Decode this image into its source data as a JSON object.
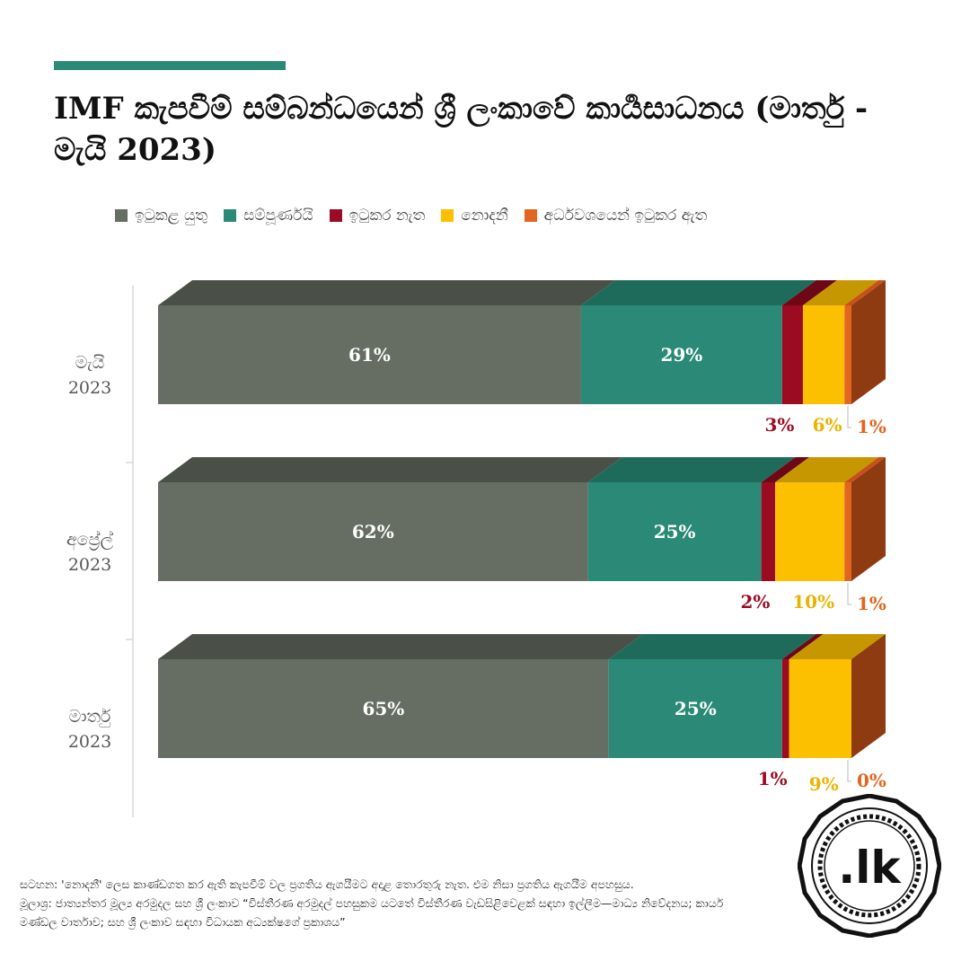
{
  "title": "IMF කැපවීම් සම්බන්ධයෙන් ශ්‍රී ලංකාවේ කාර්‍යසාධනය (මාර්තු - මැයි  2023)",
  "colors": {
    "accent": "#2a8a77",
    "should_complete": "#666d62",
    "complete": "#2a8a77",
    "not_complete": "#9b0c22",
    "unknown": "#fcc000",
    "partial": "#e2661f"
  },
  "legend": [
    {
      "label": "ඉටුකළ යුතු",
      "color": "#666d62"
    },
    {
      "label": "සම්පූර්ණයි",
      "color": "#2a8a77"
    },
    {
      "label": "ඉටුකර නැත",
      "color": "#9b0c22"
    },
    {
      "label": "නොදනී",
      "color": "#fcc000"
    },
    {
      "label": "අර්ධවශයෙන් ඉටුකර ඇත",
      "color": "#e2661f"
    }
  ],
  "chart_data": {
    "type": "bar",
    "orientation": "horizontal",
    "stacked": true,
    "normalized": true,
    "categories": [
      {
        "name": "මැයි",
        "year": "2023"
      },
      {
        "name": "අප්‍රේල්",
        "year": "2023"
      },
      {
        "name": "මාර්තු",
        "year": "2023"
      }
    ],
    "series": [
      {
        "name": "ඉටුකළ යුතු",
        "color": "#666d62",
        "values": [
          61,
          62,
          65
        ]
      },
      {
        "name": "සම්පූර්ණයි",
        "color": "#2a8a77",
        "values": [
          29,
          25,
          25
        ]
      },
      {
        "name": "ඉටුකර නැත",
        "color": "#9b0c22",
        "values": [
          3,
          2,
          1
        ]
      },
      {
        "name": "නොදනී",
        "color": "#fcc000",
        "values": [
          6,
          10,
          9
        ]
      },
      {
        "name": "අර්ධවශයෙන් ඉටුකර ඇත",
        "color": "#e2661f",
        "values": [
          1,
          1,
          0
        ]
      }
    ],
    "value_suffix": "%"
  },
  "notes": {
    "note": "සටහන: 'නොදනී' ලෙස කාණ්ඩගත කර ඇති කැපවීම් වල ප්‍රගතිය ඇගයීමට අදාළ තොරතුරු නැත. එම නිසා ප්‍රගතිය ඇගයීම අපහසුය.",
    "source": "මූලාශ්‍ර: ජාත්‍යන්තර මූල්‍ය අරමුදල සහ ශ්‍රී ලංකාව “විස්තීරණ අරමුදල් පහසුකම යටතේ විස්තීරණ වැඩසිළිවෙළක් සඳහා ඉල්ලීම—මාධ්‍ය නිවේදනය; කාර්ය මණ්ඩල වාර්තාව; සහ ශ්‍රී ලංකාව සඳහා විධායක අධ්‍යක්ෂගේ ප්‍රකාශය”"
  },
  "logo": {
    "text": ".lk"
  }
}
